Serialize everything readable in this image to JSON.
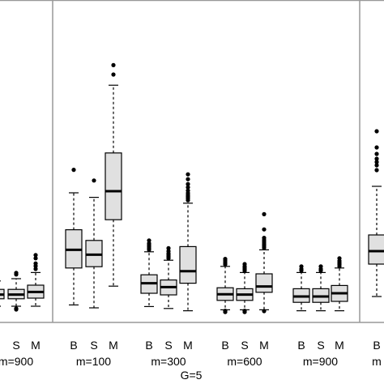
{
  "chart_data": {
    "type": "boxplot",
    "caption": "G=5",
    "panels": [
      {
        "name": "left-partial",
        "groups": [
          {
            "label": "m=900",
            "boxes": [
              {
                "method": "B",
                "q1": 13.3,
                "median": 14.6,
                "q3": 16.2,
                "whisker_low": 11.0,
                "whisker_high": 18.8,
                "outliers": [
                  10.3,
                  9.9
                ]
              },
              {
                "method": "S",
                "q1": 13.3,
                "median": 14.6,
                "q3": 16.2,
                "whisker_low": 11.0,
                "whisker_high": 19.5,
                "outliers": [
                  10.3,
                  10.0,
                  20.8,
                  21.3
                ]
              },
              {
                "method": "M",
                "q1": 13.5,
                "median": 15.4,
                "q3": 17.5,
                "whisker_low": 11.0,
                "whisker_high": 21.4,
                "outliers": [
                  22.5,
                  23.4,
                  24.2,
                  25.8,
                  26.8
                ]
              }
            ]
          }
        ]
      },
      {
        "name": "middle",
        "groups": [
          {
            "label": "m=100",
            "boxes": [
              {
                "method": "B",
                "q1": 22.8,
                "median": 28.4,
                "q3": 34.6,
                "whisker_low": 11.4,
                "whisker_high": 46.0,
                "outliers": [
                  53.1
                ]
              },
              {
                "method": "S",
                "q1": 23.2,
                "median": 26.9,
                "q3": 31.3,
                "whisker_low": 10.5,
                "whisker_high": 44.6,
                "outliers": [
                  49.8
                ]
              },
              {
                "method": "M",
                "q1": 37.7,
                "median": 46.5,
                "q3": 58.3,
                "whisker_low": 17.2,
                "whisker_high": 79.2,
                "outliers": [
                  82.5,
                  85.4
                ]
              }
            ]
          }
        ]
      },
      {
        "name": "right",
        "groups": [
          {
            "label": "m=300",
            "boxes": [
              {
                "method": "B",
                "q1": 15.0,
                "median": 18.1,
                "q3": 20.7,
                "whisker_low": 10.9,
                "whisker_high": 27.8,
                "outliers": [
                  28.4,
                  28.9,
                  29.4,
                  29.9,
                  30.4,
                  31.3
                ]
              },
              {
                "method": "S",
                "q1": 14.5,
                "median": 16.9,
                "q3": 19.1,
                "whisker_low": 10.3,
                "whisker_high": 25.2,
                "outliers": [
                  25.8,
                  26.3,
                  26.8,
                  27.3,
                  28.0,
                  28.9
                ]
              },
              {
                "method": "M",
                "q1": 18.1,
                "median": 21.8,
                "q3": 29.4,
                "whisker_low": 9.6,
                "whisker_high": 42.8,
                "outliers": [
                  43.7,
                  44.3,
                  44.8,
                  45.3,
                  45.9,
                  46.7,
                  47.7,
                  48.7,
                  50.2,
                  51.7
                ]
              }
            ]
          },
          {
            "label": "m=600",
            "boxes": [
              {
                "method": "B",
                "q1": 12.8,
                "median": 14.7,
                "q3": 16.7,
                "whisker_low": 9.9,
                "whisker_high": 23.3,
                "outliers": [
                  23.9,
                  24.4,
                  25.0,
                  25.6,
                  9.6,
                  9.2
                ]
              },
              {
                "method": "S",
                "q1": 12.8,
                "median": 14.6,
                "q3": 16.4,
                "whisker_low": 9.9,
                "whisker_high": 21.4,
                "outliers": [
                  21.9,
                  22.4,
                  22.8,
                  23.3,
                  24.0,
                  9.6,
                  9.2
                ]
              },
              {
                "method": "M",
                "q1": 15.3,
                "median": 17.1,
                "q3": 21.0,
                "whisker_low": 9.9,
                "whisker_high": 28.4,
                "outliers": [
                  29.0,
                  29.6,
                  30.2,
                  30.8,
                  31.4,
                  32.1,
                  34.7,
                  39.4,
                  9.5
                ]
              }
            ]
          },
          {
            "label": "m=900",
            "boxes": [
              {
                "method": "B",
                "q1": 12.2,
                "median": 14.0,
                "q3": 16.4,
                "whisker_low": 9.6,
                "whisker_high": 21.4,
                "outliers": [
                  22.0,
                  22.5,
                  23.3
                ]
              },
              {
                "method": "S",
                "q1": 12.2,
                "median": 14.0,
                "q3": 16.4,
                "whisker_low": 9.6,
                "whisker_high": 21.4,
                "outliers": [
                  22.0,
                  22.5,
                  23.3
                ]
              },
              {
                "method": "M",
                "q1": 12.5,
                "median": 15.0,
                "q3": 17.4,
                "whisker_low": 9.6,
                "whisker_high": 22.8,
                "outliers": [
                  23.3,
                  23.9,
                  24.4,
                  25.0,
                  25.8
                ]
              }
            ]
          }
        ]
      },
      {
        "name": "right-partial",
        "groups": [
          {
            "label": "m",
            "boxes": [
              {
                "method": "B",
                "q1": 24.0,
                "median": 28.0,
                "q3": 33.0,
                "whisker_low": 14.0,
                "whisker_high": 48.0,
                "outliers": [
                  53.0,
                  54.5,
                  55.5,
                  56.5,
                  58.0,
                  60.0,
                  65.0
                ]
              }
            ]
          }
        ]
      }
    ]
  }
}
